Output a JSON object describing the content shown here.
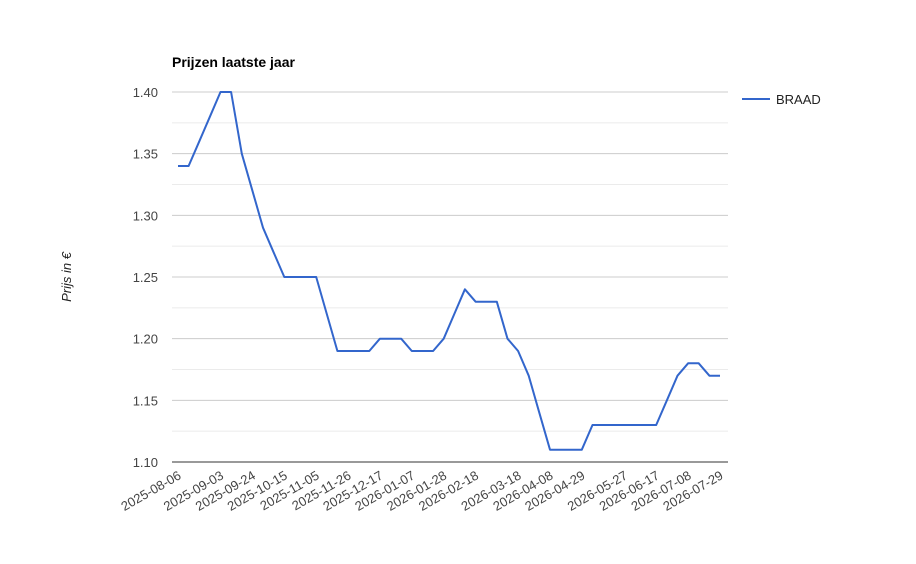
{
  "chart_data": {
    "type": "line",
    "title": "Prijzen laatste jaar",
    "xlabel": "",
    "ylabel": "Prijs in €",
    "ylim": [
      1.1,
      1.4
    ],
    "yticks": [
      "1.40",
      "1.35",
      "1.30",
      "1.25",
      "1.20",
      "1.15",
      "1.10"
    ],
    "xtick_labels": [
      "2025-08-06",
      "2025-09-03",
      "2025-09-24",
      "2025-10-15",
      "2025-11-05",
      "2025-11-26",
      "2025-12-17",
      "2026-01-07",
      "2026-01-28",
      "2026-02-18",
      "2026-03-18",
      "2026-04-08",
      "2026-04-29",
      "2026-05-27",
      "2026-06-17",
      "2026-07-08",
      "2026-07-29"
    ],
    "legend_position": "right",
    "series": [
      {
        "name": "BRAAD",
        "color": "#3366cc",
        "x": [
          "2025-08-06",
          "2025-08-13",
          "2025-08-20",
          "2025-08-27",
          "2025-09-03",
          "2025-09-10",
          "2025-09-17",
          "2025-09-24",
          "2025-10-01",
          "2025-10-08",
          "2025-10-15",
          "2025-10-22",
          "2025-10-29",
          "2025-11-05",
          "2025-11-12",
          "2025-11-19",
          "2025-11-26",
          "2025-12-03",
          "2025-12-10",
          "2025-12-17",
          "2025-12-24",
          "2025-12-31",
          "2026-01-07",
          "2026-01-14",
          "2026-01-21",
          "2026-01-28",
          "2026-02-04",
          "2026-02-11",
          "2026-02-18",
          "2026-02-25",
          "2026-03-04",
          "2026-03-11",
          "2026-03-18",
          "2026-03-25",
          "2026-04-01",
          "2026-04-08",
          "2026-04-15",
          "2026-04-22",
          "2026-04-29",
          "2026-05-06",
          "2026-05-13",
          "2026-05-20",
          "2026-05-27",
          "2026-06-03",
          "2026-06-10",
          "2026-06-17",
          "2026-06-24",
          "2026-07-01",
          "2026-07-08",
          "2026-07-15",
          "2026-07-22",
          "2026-07-29"
        ],
        "values": [
          1.34,
          1.34,
          1.36,
          1.38,
          1.4,
          1.4,
          1.35,
          1.32,
          1.29,
          1.27,
          1.25,
          1.25,
          1.25,
          1.25,
          1.22,
          1.19,
          1.19,
          1.19,
          1.19,
          1.2,
          1.2,
          1.2,
          1.19,
          1.19,
          1.19,
          1.2,
          1.22,
          1.24,
          1.23,
          1.23,
          1.23,
          1.2,
          1.19,
          1.17,
          1.14,
          1.11,
          1.11,
          1.11,
          1.11,
          1.13,
          1.13,
          1.13,
          1.13,
          1.13,
          1.13,
          1.13,
          1.15,
          1.17,
          1.18,
          1.18,
          1.17,
          1.17
        ]
      }
    ]
  }
}
